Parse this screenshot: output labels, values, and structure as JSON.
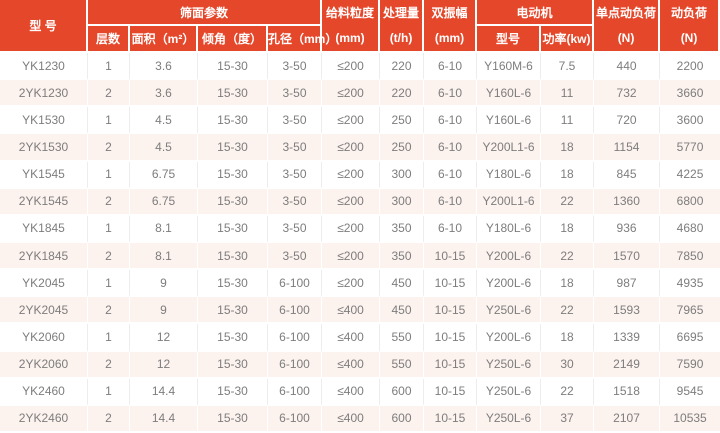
{
  "colors": {
    "header_bg": "#e5472a",
    "header_text": "#ffffff",
    "row_bg": "#ffffff",
    "row_alt_bg": "#fcf2ee",
    "cell_text": "#7d7d7d",
    "divider": "#ededed"
  },
  "chart_data": {
    "type": "table",
    "header": {
      "model": "型 号",
      "screen_group": "筛面参数",
      "sub": {
        "layers": "层数",
        "area": "面积（m²）",
        "incline": "倾角（度）",
        "aperture": "孔径（mm）"
      },
      "feed": {
        "l1": "给料粒度",
        "l2": "(mm)"
      },
      "capacity": {
        "l1": "处理量",
        "l2": "(t/h)"
      },
      "amplitude": {
        "l1": "双振幅",
        "l2": "(mm)"
      },
      "motor_group": "电动机",
      "motor": {
        "model": "型号",
        "power": "功率(kw)"
      },
      "point_load": {
        "l1": "单点动负荷",
        "l2": "(N)"
      },
      "dyn_load": {
        "l1": "动负荷",
        "l2": "(N)"
      }
    },
    "columns": [
      "型号",
      "层数",
      "面积（m²）",
      "倾角（度）",
      "孔径（mm）",
      "给料粒度(mm)",
      "处理量(t/h)",
      "双振幅(mm)",
      "电动机型号",
      "功率(kw)",
      "单点动负荷(N)",
      "动负荷(N)"
    ],
    "rows": [
      [
        "YK1230",
        "1",
        "3.6",
        "15-30",
        "3-50",
        "≤200",
        "220",
        "6-10",
        "Y160M-6",
        "7.5",
        "440",
        "2200"
      ],
      [
        "2YK1230",
        "2",
        "3.6",
        "15-30",
        "3-50",
        "≤200",
        "220",
        "6-10",
        "Y160L-6",
        "11",
        "732",
        "3660"
      ],
      [
        "YK1530",
        "1",
        "4.5",
        "15-30",
        "3-50",
        "≤200",
        "250",
        "6-10",
        "Y160L-6",
        "11",
        "720",
        "3600"
      ],
      [
        "2YK1530",
        "2",
        "4.5",
        "15-30",
        "3-50",
        "≤200",
        "250",
        "6-10",
        "Y200L1-6",
        "18",
        "1154",
        "5770"
      ],
      [
        "YK1545",
        "1",
        "6.75",
        "15-30",
        "3-50",
        "≤200",
        "300",
        "6-10",
        "Y180L-6",
        "18",
        "845",
        "4225"
      ],
      [
        "2YK1545",
        "2",
        "6.75",
        "15-30",
        "3-50",
        "≤200",
        "300",
        "6-10",
        "Y200L1-6",
        "22",
        "1360",
        "6800"
      ],
      [
        "YK1845",
        "1",
        "8.1",
        "15-30",
        "3-50",
        "≤200",
        "350",
        "6-10",
        "Y180L-6",
        "18",
        "936",
        "4680"
      ],
      [
        "2YK1845",
        "2",
        "8.1",
        "15-30",
        "3-50",
        "≤200",
        "350",
        "10-15",
        "Y200L-6",
        "22",
        "1570",
        "7850"
      ],
      [
        "YK2045",
        "1",
        "9",
        "15-30",
        "6-100",
        "≤200",
        "450",
        "10-15",
        "Y200L-6",
        "18",
        "987",
        "4935"
      ],
      [
        "2YK2045",
        "2",
        "9",
        "15-30",
        "6-100",
        "≤400",
        "450",
        "10-15",
        "Y250L-6",
        "22",
        "1593",
        "7965"
      ],
      [
        "YK2060",
        "1",
        "12",
        "15-30",
        "6-100",
        "≤400",
        "550",
        "10-15",
        "Y200L-6",
        "18",
        "1339",
        "6695"
      ],
      [
        "2YK2060",
        "2",
        "12",
        "15-30",
        "6-100",
        "≤400",
        "550",
        "10-15",
        "Y250L-6",
        "30",
        "2149",
        "7590"
      ],
      [
        "YK2460",
        "1",
        "14.4",
        "15-30",
        "6-100",
        "≤400",
        "600",
        "10-15",
        "Y250L-6",
        "22",
        "1518",
        "9545"
      ],
      [
        "2YK2460",
        "2",
        "14.4",
        "15-30",
        "6-100",
        "≤400",
        "600",
        "10-15",
        "Y250L-6",
        "37",
        "2107",
        "10535"
      ]
    ]
  }
}
